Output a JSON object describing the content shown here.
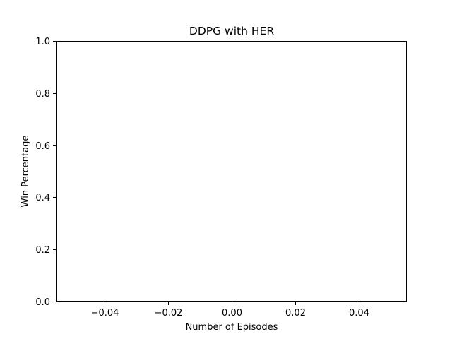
{
  "chart_data": {
    "type": "line",
    "title": "DDPG with HER",
    "xlabel": "Number of Episodes",
    "ylabel": "Win Percentage",
    "series": [
      {
        "values": [],
        "x": []
      }
    ],
    "xlim": [
      -0.055,
      0.055
    ],
    "ylim": [
      0.0,
      1.0
    ],
    "xticks": [
      -0.04,
      -0.02,
      0.0,
      0.02,
      0.04
    ],
    "xtick_labels": [
      "−0.04",
      "−0.02",
      "0.00",
      "0.02",
      "0.04"
    ],
    "yticks": [
      0.0,
      0.2,
      0.4,
      0.6,
      0.8,
      1.0
    ],
    "ytick_labels": [
      "0.0",
      "0.2",
      "0.4",
      "0.6",
      "0.8",
      "1.0"
    ],
    "grid": false,
    "legend": false
  }
}
